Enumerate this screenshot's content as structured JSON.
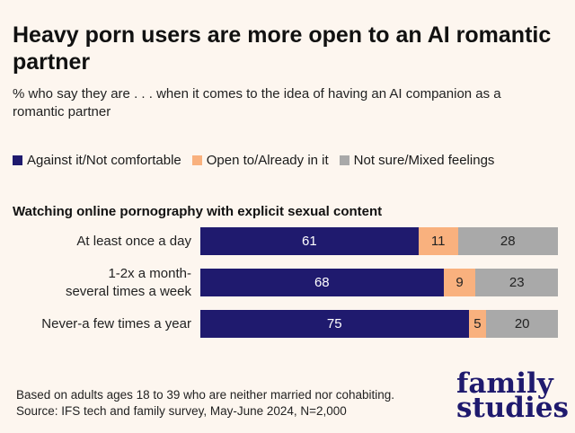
{
  "chart_data": {
    "type": "bar",
    "orientation": "horizontal",
    "stacked": true,
    "title": "Heavy porn users are more open to an AI romantic partner",
    "subtitle": "% who say they are . . . when it comes to the idea of having an AI companion as a romantic partner",
    "group_label": "Watching online pornography with explicit sexual content",
    "categories": [
      [
        "At least once a day"
      ],
      [
        "1-2x a month-",
        "several times a week"
      ],
      [
        "Never-a few times a year"
      ]
    ],
    "series": [
      {
        "name": "Against it/Not comfortable",
        "color": "#1f1a6e",
        "values": [
          61,
          68,
          75
        ]
      },
      {
        "name": "Open to/Already in it",
        "color": "#f9b17e",
        "values": [
          11,
          9,
          5
        ]
      },
      {
        "name": "Not sure/Mixed feelings",
        "color": "#a9a9a9",
        "values": [
          28,
          23,
          20
        ]
      }
    ],
    "xlim": [
      0,
      100
    ],
    "legend": "top",
    "grid": false
  },
  "footnote": {
    "line1": "Based on adults ages 18 to 39 who are neither married nor cohabiting.",
    "line2": "Source: IFS tech and family survey, May-June 2024, N=2,000"
  },
  "logo": {
    "line1": "family",
    "line2": "studies"
  }
}
